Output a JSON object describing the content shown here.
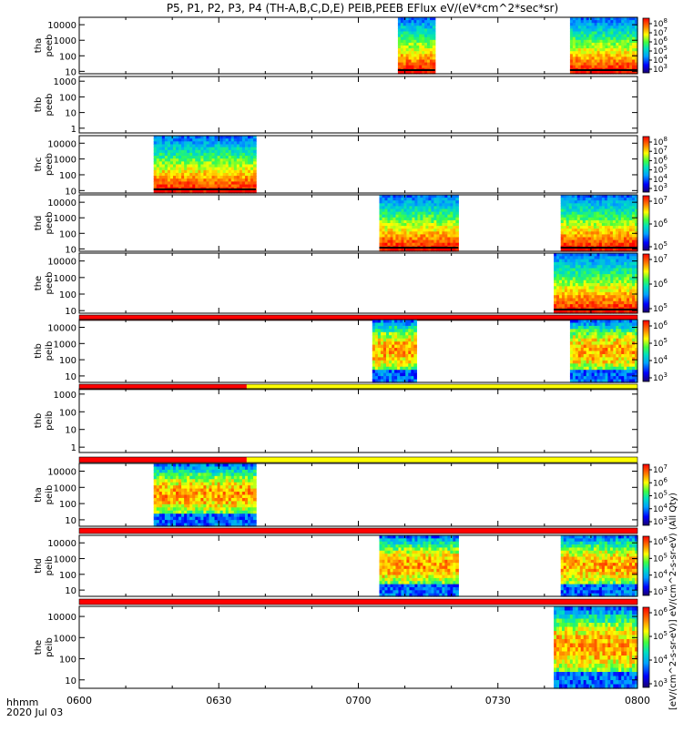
{
  "chart_data": {
    "type": "heatmap",
    "title": "P5, P1, P2, P3, P4 (TH-A,B,C,D,E) PEIB,PEEB EFlux eV/(eV*cm^2*sec*sr)",
    "x_ticks": [
      "0600",
      "0630",
      "0700",
      "0730",
      "0800"
    ],
    "x_range_minutes": [
      360,
      480
    ],
    "x_label_line1": "hhmm",
    "x_label_line2": "2020 Jul 03",
    "colorbar_side_label": "[eV/(cm^2-s-sr-eV)]  eV/(cm^2-s-sr-eV) (All Qty)",
    "panels": [
      {
        "name": "tha peeb",
        "line1": "tha",
        "line2": "peeb",
        "yticks": [
          "10",
          "100",
          "1000",
          "10000"
        ],
        "yrange": [
          7,
          30000
        ],
        "colorbar": true,
        "colorbar_ticks": [
          "10^8",
          "10^7",
          "10^6",
          "10^5",
          "10^4",
          "10^3"
        ],
        "data_intervals": [
          [
            428.5,
            436.5
          ],
          [
            465.5,
            480
          ]
        ],
        "bar_below": false
      },
      {
        "name": "thb peeb",
        "line1": "thb",
        "line2": "peeb",
        "yticks": [
          "1",
          "10",
          "100",
          "1000"
        ],
        "yrange": [
          0.5,
          2000
        ],
        "colorbar": false,
        "data_intervals": [],
        "bar_below": false
      },
      {
        "name": "thc peeb",
        "line1": "thc",
        "line2": "peeb",
        "yticks": [
          "10",
          "100",
          "1000",
          "10000"
        ],
        "yrange": [
          7,
          30000
        ],
        "colorbar": true,
        "colorbar_ticks": [
          "10^8",
          "10^7",
          "10^6",
          "10^5",
          "10^4",
          "10^3"
        ],
        "data_intervals": [
          [
            376,
            398
          ]
        ],
        "bar_below": false
      },
      {
        "name": "thd peeb",
        "line1": "thd",
        "line2": "peeb",
        "yticks": [
          "10",
          "100",
          "1000",
          "10000"
        ],
        "yrange": [
          7,
          30000
        ],
        "colorbar": true,
        "colorbar_ticks": [
          "10^7",
          "10^6",
          "10^5"
        ],
        "data_intervals": [
          [
            424.5,
            441.5
          ],
          [
            463.5,
            480
          ]
        ],
        "bar_below": false
      },
      {
        "name": "the peeb",
        "line1": "the",
        "line2": "peeb",
        "yticks": [
          "10",
          "100",
          "1000",
          "10000"
        ],
        "yrange": [
          7,
          30000
        ],
        "colorbar": true,
        "colorbar_ticks": [
          "10^7",
          "10^6",
          "10^5"
        ],
        "data_intervals": [
          [
            462,
            480
          ]
        ],
        "bar_below": true,
        "bar_split": 480
      },
      {
        "name": "thb peib",
        "line1": "thb",
        "line2": "peib",
        "yticks": [
          "10",
          "100",
          "1000",
          "10000"
        ],
        "yrange": [
          4,
          30000
        ],
        "colorbar": true,
        "colorbar_ticks": [
          "10^6",
          "10^5",
          "10^4",
          "10^3"
        ],
        "data_intervals": [
          [
            423,
            432.5
          ],
          [
            465.5,
            480
          ]
        ],
        "bar_below": true,
        "bar_split": 396
      },
      {
        "name": "thb peib 2",
        "line1": "thb",
        "line2": "peib",
        "yticks": [
          "1",
          "10",
          "100",
          "1000"
        ],
        "yrange": [
          0.5,
          2000
        ],
        "colorbar": false,
        "data_intervals": [],
        "bar_below": true,
        "bar_split": 396
      },
      {
        "name": "tha peib",
        "line1": "tha",
        "line2": "peib",
        "yticks": [
          "10",
          "100",
          "1000",
          "10000"
        ],
        "yrange": [
          4,
          30000
        ],
        "colorbar": true,
        "colorbar_ticks": [
          "10^7",
          "10^6",
          "10^5",
          "10^4",
          "10^3"
        ],
        "data_intervals": [
          [
            376,
            398
          ]
        ],
        "bar_below": true,
        "bar_split": 480
      },
      {
        "name": "thd peib",
        "line1": "thd",
        "line2": "peib",
        "yticks": [
          "10",
          "100",
          "1000",
          "10000"
        ],
        "yrange": [
          4,
          30000
        ],
        "colorbar": true,
        "colorbar_ticks": [
          "10^6",
          "10^5",
          "10^4",
          "10^3"
        ],
        "data_intervals": [
          [
            424.5,
            441.5
          ],
          [
            463.5,
            480
          ]
        ],
        "bar_below": true,
        "bar_split": 480
      },
      {
        "name": "the peib",
        "line1": "the",
        "line2": "peib",
        "yticks": [
          "10",
          "100",
          "1000",
          "10000"
        ],
        "yrange": [
          4,
          30000
        ],
        "colorbar": true,
        "colorbar_ticks": [
          "10^6",
          "10^5",
          "10^4",
          "10^3"
        ],
        "data_intervals": [
          [
            462,
            480
          ]
        ],
        "bar_below": false
      }
    ]
  }
}
